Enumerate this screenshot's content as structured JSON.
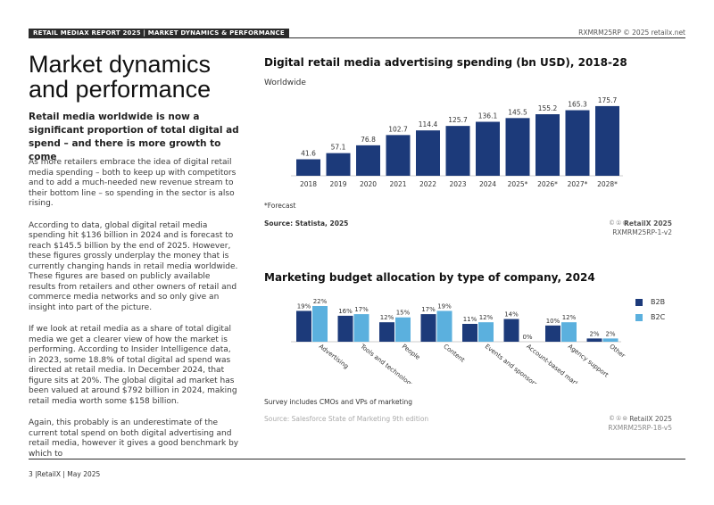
{
  "header": {
    "tag": "RETAIL MEDIAX REPORT 2025 | MARKET DYNAMICS & PERFORMANCE",
    "right": "RXMRM25RP © 2025 retailx.net"
  },
  "page_title": "Market dynamics and performance",
  "lead": "Retail media worldwide is now a significant proportion of total digital ad spend – and there is more growth to come",
  "paragraphs": [
    "As more retailers embrace the idea of digital retail media spending – both to keep up with competitors and to add a much-needed new revenue stream to their bottom line – so spending in the sector is also rising.",
    "According to data, global digital retail media spending hit $136 billion in 2024 and is forecast to reach $145.5 billion by the end of 2025. However, these figures grossly underplay the money that is currently changing hands in retail media worldwide. These figures are based on publicly available results from retailers and other owners of retail and commerce media networks and so only give an insight into part of the picture.",
    "If we look at retail media as a share of total digital media we get a clearer view of how the market is performing. According to Insider Intelligence data, in 2023, some 18.8% of total digital ad spend was directed at retail media. In December 2024, that figure sits at 20%. The global digital ad market has been valued at around $792 billion in 2024, making retail media worth some $158 billion.",
    "Again, this probably is an underestimate of the current total spend on both digital advertising and retail media, however it gives a good benchmark by which to"
  ],
  "chart1": {
    "note": "*Forecast",
    "source": "Source: Statista, 2025",
    "brand": "RetailX 2025",
    "code": "RXMRM25RP-1-v2",
    "cc": "©①⊜"
  },
  "chart2": {
    "note": "Survey includes CMOs and VPs of marketing",
    "source": "Source: Salesforce State of Marketing 9th edition",
    "brand": "RetailX 2025",
    "code": "RXMRM25RP-18-v5",
    "cc": "©①⊜"
  },
  "footer": "3 |RetailX | May 2025",
  "colors": {
    "dark": "#1c3a7a",
    "light": "#5bb0de"
  },
  "chart_data": [
    {
      "type": "bar",
      "title": "Digital retail media advertising spending (bn USD), 2018-28",
      "subtitle": "Worldwide",
      "categories": [
        "2018",
        "2019",
        "2020",
        "2021",
        "2022",
        "2023",
        "2024",
        "2025*",
        "2026*",
        "2027*",
        "2028*"
      ],
      "values": [
        41.6,
        57.1,
        76.8,
        102.7,
        114.4,
        125.7,
        136.1,
        145.5,
        155.2,
        165.3,
        175.7
      ],
      "labels": [
        "41.6",
        "57.1",
        "76.8",
        "102.7",
        "114.4",
        "125.7",
        "136.1",
        "145.5",
        "155.2",
        "165.3",
        "175.7"
      ],
      "ylim": [
        0,
        180
      ],
      "grid": false
    },
    {
      "type": "bar",
      "title": "Marketing budget allocation by type of company, 2024",
      "categories": [
        "Advertising",
        "Tools and technology",
        "People",
        "Content",
        "Events and sponsorship",
        "Account-based marketing",
        "Agency support",
        "Other"
      ],
      "series": [
        {
          "name": "B2B",
          "values": [
            19,
            16,
            12,
            17,
            11,
            14,
            10,
            2
          ],
          "labels": [
            "19%",
            "16%",
            "12%",
            "17%",
            "11%",
            "14%",
            "10%",
            "2%"
          ]
        },
        {
          "name": "B2C",
          "values": [
            22,
            17,
            15,
            19,
            12,
            0,
            12,
            2
          ],
          "labels": [
            "22%",
            "17%",
            "15%",
            "19%",
            "12%",
            "0%",
            "12%",
            "2%"
          ]
        }
      ],
      "ylim": [
        0,
        22
      ],
      "legend": "right",
      "grid": false
    }
  ]
}
